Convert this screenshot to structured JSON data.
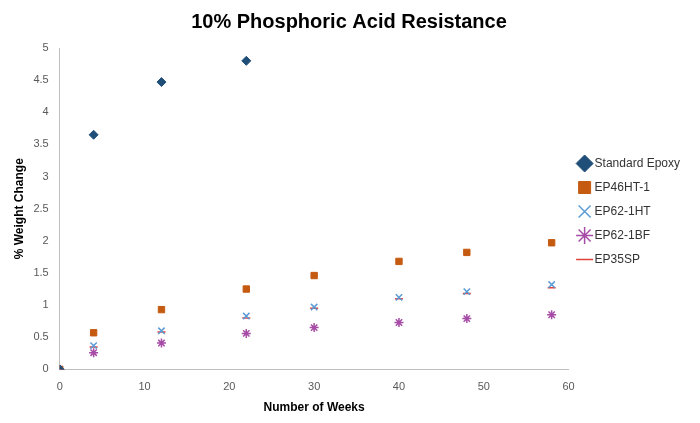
{
  "chart_data": {
    "type": "scatter",
    "title": "10% Phosphoric Acid Resistance",
    "x_label": "Number of Weeks",
    "y_label": "% Weight Change",
    "xlim": [
      0,
      60
    ],
    "xticks": [
      0,
      10,
      20,
      30,
      40,
      50,
      60
    ],
    "ylim": [
      0,
      5
    ],
    "yticks": [
      0,
      0.5,
      1,
      1.5,
      2,
      2.5,
      3,
      3.5,
      4,
      4.5,
      5
    ],
    "grid": false,
    "legend": "right",
    "series": [
      {
        "name": "Standard Epoxy",
        "color": "#1f4e79",
        "marker": "diamond",
        "x": [
          0,
          4,
          12,
          22
        ],
        "values": [
          0,
          3.65,
          4.47,
          4.8
        ]
      },
      {
        "name": "EP46HT-1",
        "color": "#c55a11",
        "marker": "square",
        "x": [
          0,
          4,
          12,
          22,
          30,
          40,
          48,
          58
        ],
        "values": [
          0,
          0.57,
          0.93,
          1.25,
          1.46,
          1.68,
          1.82,
          1.97
        ]
      },
      {
        "name": "EP62-1HT",
        "color": "#5b9bd5",
        "marker": "x",
        "x": [
          0,
          4,
          12,
          22,
          30,
          40,
          48,
          58
        ],
        "values": [
          0,
          0.37,
          0.6,
          0.83,
          0.97,
          1.12,
          1.21,
          1.32
        ]
      },
      {
        "name": "EP62-1BF",
        "color": "#a64ca6",
        "marker": "star",
        "x": [
          0,
          4,
          12,
          22,
          30,
          40,
          48,
          58
        ],
        "values": [
          0,
          0.26,
          0.41,
          0.56,
          0.65,
          0.73,
          0.79,
          0.85
        ]
      },
      {
        "name": "EP35SP",
        "color": "#e0433a",
        "marker": "dash",
        "x": [
          0,
          4,
          12,
          22,
          30,
          40,
          48,
          58
        ],
        "values": [
          0,
          0.35,
          0.58,
          0.8,
          0.95,
          1.1,
          1.18,
          1.27
        ]
      }
    ]
  }
}
